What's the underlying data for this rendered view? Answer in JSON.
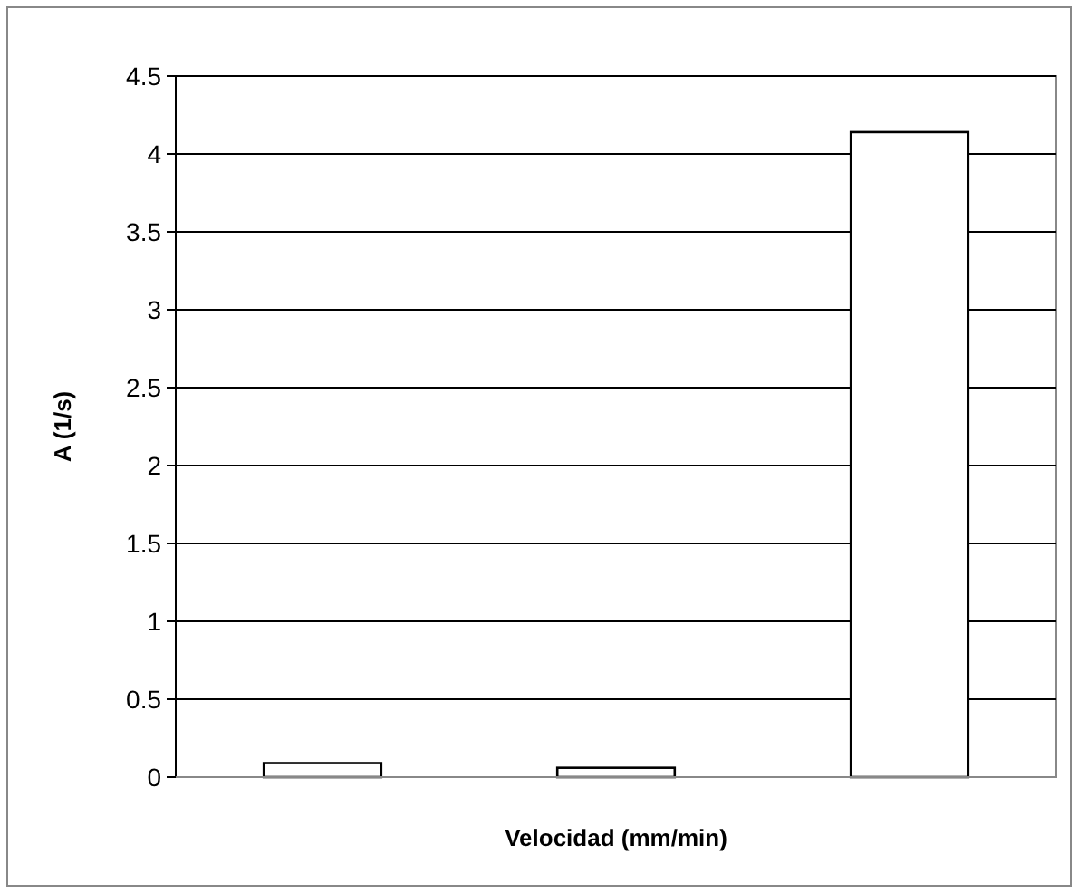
{
  "chart_data": {
    "type": "bar",
    "xlabel": "Velocidad (mm/min)",
    "ylabel": "A (1/s)",
    "categories": [
      null,
      null,
      null
    ],
    "values": [
      0.09,
      0.06,
      4.14
    ],
    "color": "#ffffff",
    "ylim": [
      0,
      4.5
    ],
    "yticks": [
      0,
      0.5,
      1,
      1.5,
      2,
      2.5,
      3,
      3.5,
      4,
      4.5
    ],
    "grid": "y"
  }
}
